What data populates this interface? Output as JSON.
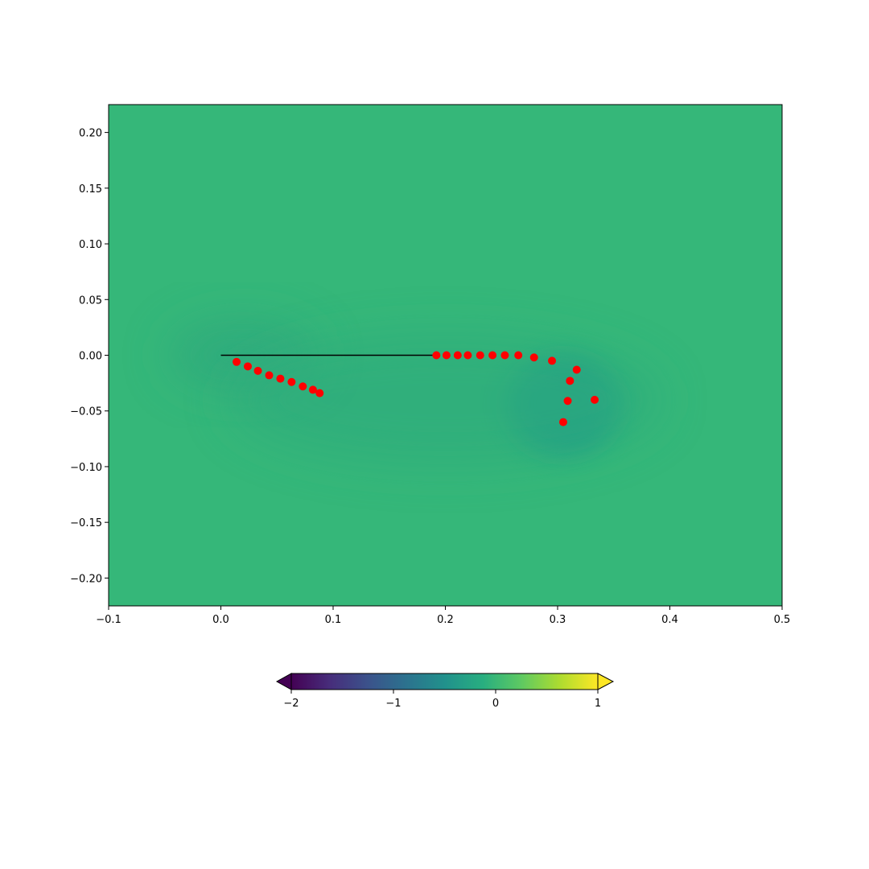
{
  "chart_data": {
    "type": "scatter",
    "xlim": [
      -0.1,
      0.5
    ],
    "ylim": [
      -0.225,
      0.225
    ],
    "xticks": [
      -0.1,
      0.0,
      0.1,
      0.2,
      0.3,
      0.4,
      0.5
    ],
    "xtick_labels": [
      "−0.1",
      "0.0",
      "0.1",
      "0.2",
      "0.3",
      "0.4",
      "0.5"
    ],
    "yticks": [
      0.2,
      0.15,
      0.1,
      0.05,
      0.0,
      -0.05,
      -0.1,
      -0.15,
      -0.2
    ],
    "ytick_labels": [
      "0.20",
      "0.15",
      "0.10",
      "0.05",
      "0.00",
      "−0.05",
      "−0.10",
      "−0.15",
      "−0.20"
    ],
    "grid": false,
    "background_field": {
      "colormap": "viridis",
      "base_value": 0.0,
      "features": [
        {
          "x": 0.02,
          "y": 0.0,
          "amplitude": -0.08
        },
        {
          "x": 0.305,
          "y": -0.045,
          "amplitude": -0.35
        },
        {
          "x": 0.2,
          "y": -0.04,
          "amplitude": -0.05
        }
      ]
    },
    "plate_line": {
      "color": "#000000",
      "x": [
        0.0,
        0.19
      ],
      "y": [
        0.0,
        0.0
      ]
    },
    "series": [
      {
        "color": "#ff0000",
        "marker": "circle",
        "points": [
          [
            0.014,
            -0.006
          ],
          [
            0.024,
            -0.01
          ],
          [
            0.033,
            -0.014
          ],
          [
            0.043,
            -0.018
          ],
          [
            0.053,
            -0.021
          ],
          [
            0.063,
            -0.024
          ],
          [
            0.073,
            -0.028
          ],
          [
            0.082,
            -0.031
          ],
          [
            0.088,
            -0.034
          ],
          [
            0.192,
            0.0
          ],
          [
            0.201,
            0.0
          ],
          [
            0.211,
            0.0
          ],
          [
            0.22,
            0.0
          ],
          [
            0.231,
            0.0
          ],
          [
            0.242,
            0.0
          ],
          [
            0.253,
            0.0
          ],
          [
            0.265,
            0.0
          ],
          [
            0.279,
            -0.002
          ],
          [
            0.295,
            -0.005
          ],
          [
            0.317,
            -0.013
          ],
          [
            0.311,
            -0.023
          ],
          [
            0.309,
            -0.041
          ],
          [
            0.333,
            -0.04
          ],
          [
            0.305,
            -0.06
          ]
        ]
      }
    ],
    "colorbar": {
      "colormap": "viridis",
      "range": [
        -2,
        1
      ],
      "extend": "both",
      "orientation": "horizontal",
      "ticks": [
        -2,
        -1,
        0,
        1
      ],
      "tick_labels": [
        "−2",
        "−1",
        "0",
        "1"
      ]
    }
  }
}
